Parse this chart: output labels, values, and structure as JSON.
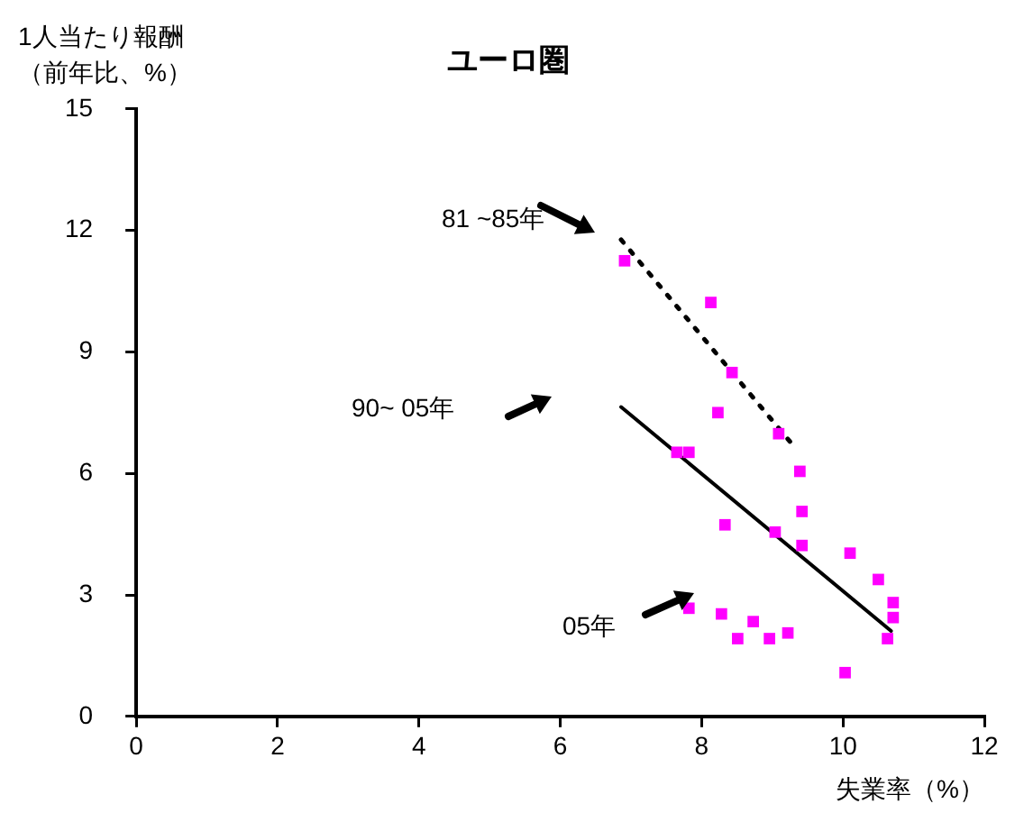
{
  "chart_data": {
    "type": "scatter",
    "title": "ユーロ圏",
    "xlabel": "失業率（%）",
    "ylabel": "1人当たり報酬（前年比、%）",
    "xlim": [
      0,
      12
    ],
    "xticks": [
      0,
      2,
      4,
      6,
      8,
      10,
      12
    ],
    "ylim": [
      0,
      15
    ],
    "yticks": [
      0,
      3,
      6,
      9,
      12,
      15
    ],
    "grid": false,
    "legend": false,
    "marker": "square",
    "series": [
      {
        "color": "#ff00ff",
        "x": [
          6.91,
          8.13,
          8.43,
          8.23,
          9.09,
          9.39,
          9.42,
          7.65,
          7.82,
          8.33,
          9.04,
          9.42,
          10.1,
          10.5,
          10.71,
          10.71,
          10.63,
          7.82,
          8.28,
          8.73,
          8.51,
          8.96,
          9.22,
          10.03
        ],
        "values": [
          11.25,
          10.22,
          8.49,
          7.5,
          6.98,
          6.05,
          5.06,
          6.52,
          6.52,
          4.73,
          4.55,
          4.22,
          4.03,
          3.38,
          2.81,
          2.44,
          1.92,
          2.67,
          2.53,
          2.34,
          1.92,
          1.92,
          2.06,
          1.08
        ]
      },
      {
        "type": "line",
        "color": "#000000",
        "line_style": "dotted",
        "marker": "none",
        "x": [
          6.86,
          9.29
        ],
        "values": [
          11.77,
          6.7
        ]
      },
      {
        "type": "line",
        "color": "#000000",
        "line_style": "solid",
        "marker": "none",
        "x": [
          6.86,
          10.68
        ],
        "values": [
          7.64,
          2.11
        ]
      }
    ],
    "annotations": [
      "81 ~85年",
      "90~ 05年",
      "05年"
    ]
  }
}
